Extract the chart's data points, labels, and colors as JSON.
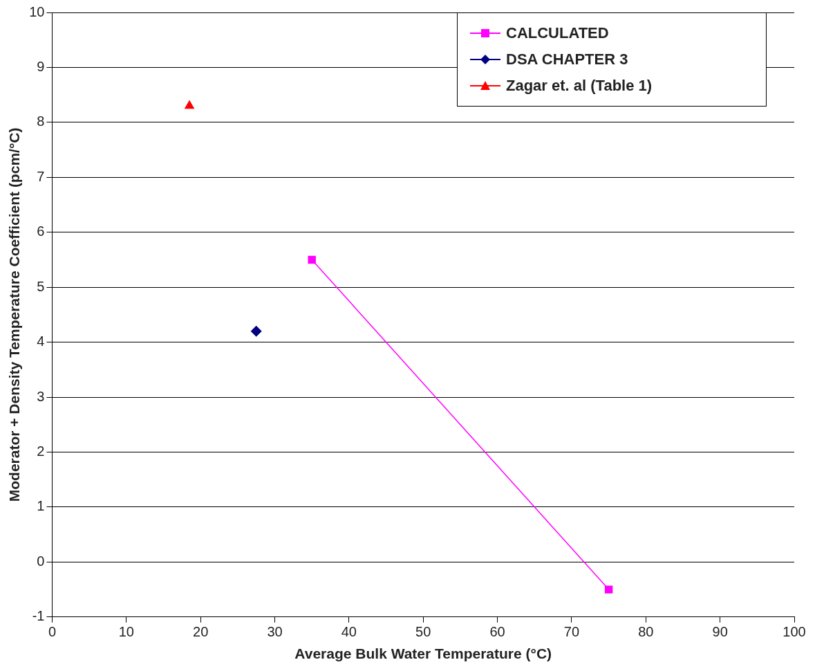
{
  "chart_data": {
    "type": "scatter",
    "xlabel": "Average Bulk Water Temperature (°C)",
    "ylabel": "Moderator + Density Temperature Coefficient (pcm/°C)",
    "xlim": [
      0,
      100
    ],
    "xticks": [
      0,
      10,
      20,
      30,
      40,
      50,
      60,
      70,
      80,
      90,
      100
    ],
    "ylim": [
      -1,
      10
    ],
    "yticks": [
      -1,
      0,
      1,
      2,
      3,
      4,
      5,
      6,
      7,
      8,
      9,
      10
    ],
    "grid": "y",
    "legend": "top right",
    "series": [
      {
        "name": "CALCULATED",
        "type": "line",
        "color": "#ff00ff",
        "marker": "square",
        "x": [
          35,
          75
        ],
        "values": [
          5.5,
          -0.5
        ]
      },
      {
        "name": "DSA CHAPTER 3",
        "type": "scatter",
        "color": "#000080",
        "marker": "diamond",
        "x": [
          27.5
        ],
        "values": [
          4.2
        ]
      },
      {
        "name": "Zagar et. al (Table 1)",
        "type": "scatter",
        "color": "#ff0000",
        "marker": "triangle",
        "x": [
          18.5
        ],
        "values": [
          8.3
        ]
      }
    ]
  }
}
